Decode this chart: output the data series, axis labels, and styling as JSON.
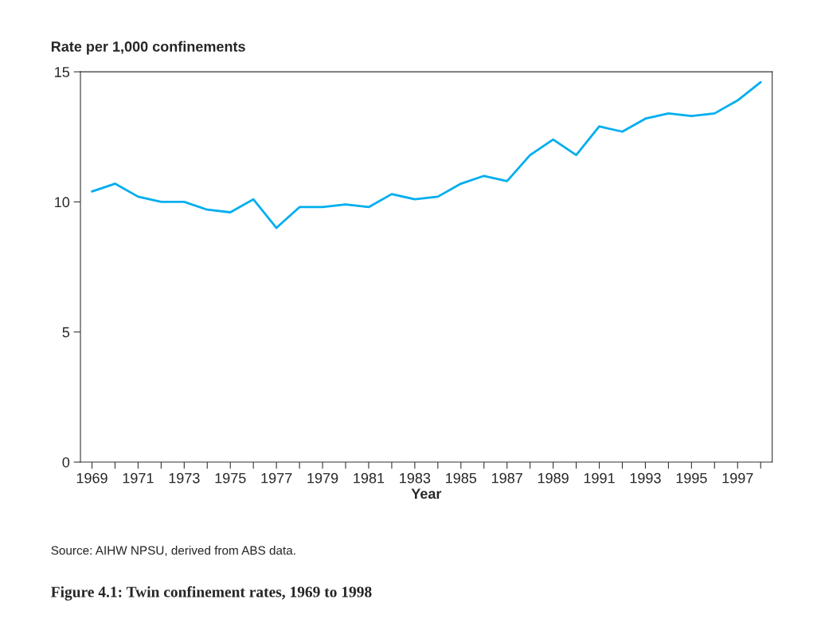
{
  "chart_data": {
    "type": "line",
    "title": "Figure 4.1: Twin confinement rates, 1969 to 1998",
    "ylabel": "Rate per 1,000 confinements",
    "xlabel": "Year",
    "annotations": [
      "Source: AIHW NPSU, derived from ABS data."
    ],
    "x": [
      1969,
      1970,
      1971,
      1972,
      1973,
      1974,
      1975,
      1976,
      1977,
      1978,
      1979,
      1980,
      1981,
      1982,
      1983,
      1984,
      1985,
      1986,
      1987,
      1988,
      1989,
      1990,
      1991,
      1992,
      1993,
      1994,
      1995,
      1996,
      1997,
      1998
    ],
    "series": [
      {
        "color": "#00aeef",
        "values": [
          10.4,
          10.7,
          10.2,
          10.0,
          10.0,
          9.7,
          9.6,
          10.1,
          9.0,
          9.8,
          9.8,
          9.9,
          9.8,
          10.3,
          10.1,
          10.2,
          10.7,
          11.0,
          10.8,
          11.8,
          12.4,
          11.8,
          12.9,
          12.7,
          13.2,
          13.4,
          13.3,
          13.4,
          13.9,
          14.6
        ]
      }
    ],
    "xlim": [
      1968.5,
      1998.5
    ],
    "xticks": [
      1969,
      {
        "value": 1970,
        "label": null
      },
      1971,
      {
        "value": 1972,
        "label": null
      },
      1973,
      {
        "value": 1974,
        "label": null
      },
      1975,
      {
        "value": 1976,
        "label": null
      },
      1977,
      {
        "value": 1978,
        "label": null
      },
      1979,
      {
        "value": 1980,
        "label": null
      },
      1981,
      {
        "value": 1982,
        "label": null
      },
      1983,
      {
        "value": 1984,
        "label": null
      },
      1985,
      {
        "value": 1986,
        "label": null
      },
      1987,
      {
        "value": 1988,
        "label": null
      },
      1989,
      {
        "value": 1990,
        "label": null
      },
      1991,
      {
        "value": 1992,
        "label": null
      },
      1993,
      {
        "value": 1994,
        "label": null
      },
      1995,
      {
        "value": 1996,
        "label": null
      },
      1997,
      {
        "value": 1998,
        "label": null
      }
    ],
    "ylim": [
      0,
      15
    ],
    "yticks": [
      0,
      5,
      10,
      15
    ],
    "grid": false,
    "legend": false,
    "marker": "none",
    "line_style": "solid"
  }
}
